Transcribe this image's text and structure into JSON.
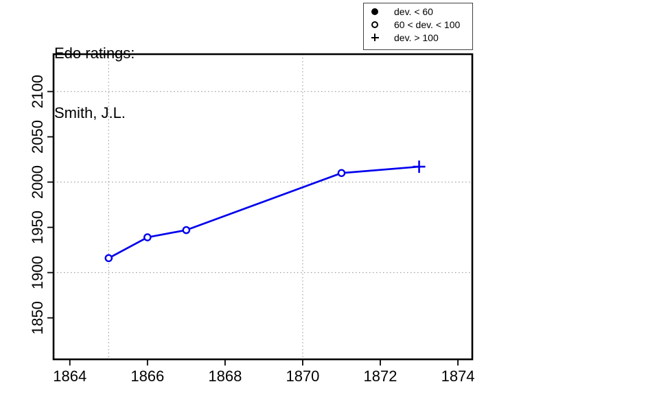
{
  "chart_data": {
    "type": "line",
    "title": "Edo ratings:",
    "subtitle": "Smith, J.L.",
    "xlabel": "",
    "ylabel": "",
    "x_ticks": [
      1864,
      1866,
      1868,
      1870,
      1872,
      1874
    ],
    "y_ticks": [
      1850,
      1900,
      1950,
      2000,
      2050,
      2100
    ],
    "grid_x": [
      1865,
      1870
    ],
    "grid_y": [
      1900,
      2000,
      2100
    ],
    "grid_style": "dotted",
    "xlim": [
      1863.58,
      1874.37
    ],
    "ylim": [
      1804.2,
      2141.3
    ],
    "series": [
      {
        "name": "Smith, J.L.",
        "x": [
          1865,
          1866,
          1867,
          1871,
          1873
        ],
        "y": [
          1916,
          1939,
          1947,
          2010,
          2017
        ],
        "symbols": [
          "open-circle",
          "open-circle",
          "open-circle",
          "open-circle",
          "plus"
        ]
      }
    ],
    "legend": {
      "position": "top-right",
      "items": [
        {
          "symbol": "filled-circle",
          "label": "dev. < 60"
        },
        {
          "symbol": "open-circle",
          "label": "60 < dev. < 100"
        },
        {
          "symbol": "plus",
          "label": "dev. > 100"
        }
      ]
    },
    "colors": {
      "line": "#0000EE",
      "axis": "#000000",
      "grid": "#A0A0A0",
      "background": "#FFFFFF",
      "text": "#000000"
    }
  }
}
